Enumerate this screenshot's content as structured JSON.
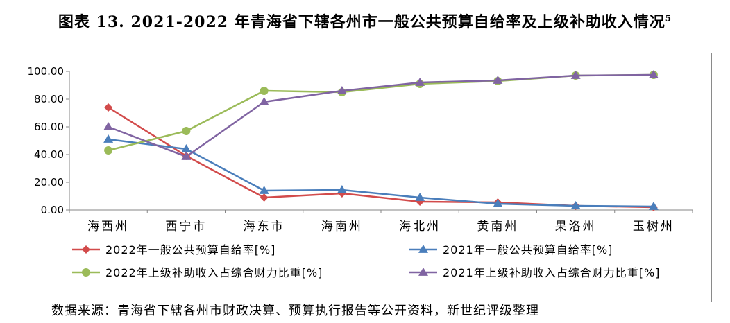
{
  "title": "图表 13. 2021-2022 年青海省下辖各州市一般公共预算自给率及上级补助收入情况",
  "title_note": "5",
  "source": "数据来源：青海省下辖各州市财政决算、预算执行报告等公开资料，新世纪评级整理",
  "chart_data": {
    "type": "line",
    "categories": [
      "海西州",
      "西宁市",
      "海东市",
      "海南州",
      "海北州",
      "黄南州",
      "果洛州",
      "玉树州"
    ],
    "ylim": [
      0,
      100
    ],
    "yticks": [
      "0.00",
      "20.00",
      "40.00",
      "60.00",
      "80.00",
      "100.00"
    ],
    "grid": false,
    "legend_position": "bottom",
    "series": [
      {
        "name": "2022年一般公共预算自给率[%]",
        "color": "#d24b4b",
        "marker": "diamond",
        "values": [
          74,
          39,
          9,
          12,
          6,
          5.5,
          3,
          2
        ]
      },
      {
        "name": "2021年一般公共预算自给率[%]",
        "color": "#4a7ebb",
        "marker": "triangle",
        "values": [
          51,
          44,
          14,
          14.5,
          9,
          4.5,
          3,
          2.5
        ]
      },
      {
        "name": "2022年上级补助收入占综合财力比重[%]",
        "color": "#9bbb59",
        "marker": "circle",
        "values": [
          43,
          57,
          86,
          85,
          91,
          93,
          97,
          97.5
        ]
      },
      {
        "name": "2021年上级补助收入占综合财力比重[%]",
        "color": "#8064a2",
        "marker": "triangle",
        "values": [
          60,
          38.5,
          78,
          86,
          92,
          93.5,
          97,
          97.5
        ]
      }
    ]
  }
}
